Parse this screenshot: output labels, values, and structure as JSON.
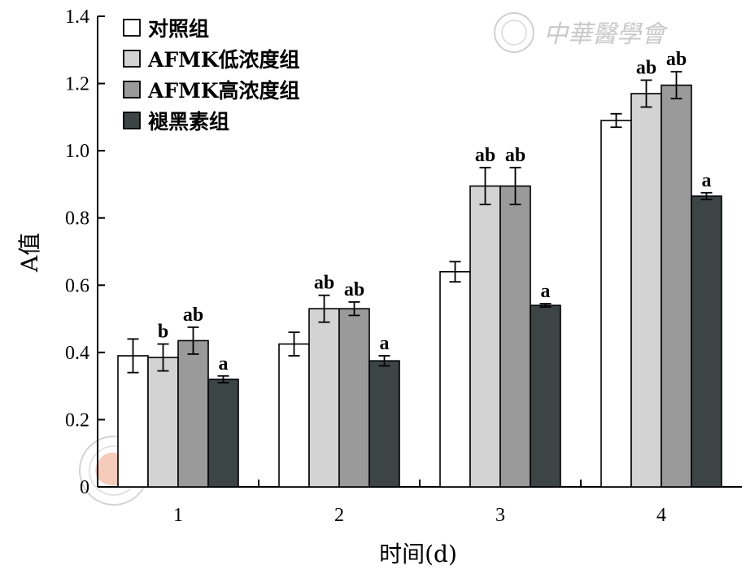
{
  "watermark": {
    "brand": "中華醫學會"
  },
  "chart_data": {
    "type": "bar",
    "xlabel": "时间(d)",
    "ylabel": "A值",
    "ylim": [
      0,
      1.4
    ],
    "yticks": [
      "0",
      "0.2",
      "0.4",
      "0.6",
      "0.8",
      "1.0",
      "1.2",
      "1.4"
    ],
    "categories": [
      "1",
      "2",
      "3",
      "4"
    ],
    "legend_position": "top-left",
    "grid": false,
    "series": [
      {
        "name": "对照组",
        "color": "#ffffff",
        "values": [
          0.39,
          0.425,
          0.64,
          1.09
        ],
        "errors": [
          0.05,
          0.035,
          0.03,
          0.02
        ],
        "labels": [
          "",
          "",
          "",
          ""
        ]
      },
      {
        "name": "AFMK低浓度组",
        "color": "#d3d3d3",
        "values": [
          0.385,
          0.53,
          0.895,
          1.17
        ],
        "errors": [
          0.04,
          0.04,
          0.055,
          0.04
        ],
        "labels": [
          "b",
          "ab",
          "ab",
          "ab"
        ]
      },
      {
        "name": "AFMK高浓度组",
        "color": "#9a9a9a",
        "values": [
          0.435,
          0.53,
          0.895,
          1.195
        ],
        "errors": [
          0.04,
          0.02,
          0.055,
          0.04
        ],
        "labels": [
          "ab",
          "ab",
          "ab",
          "ab"
        ]
      },
      {
        "name": "褪黑素组",
        "color": "#3d4446",
        "values": [
          0.32,
          0.375,
          0.54,
          0.865
        ],
        "errors": [
          0.01,
          0.015,
          0.005,
          0.01
        ],
        "labels": [
          "a",
          "a",
          "a",
          "a"
        ]
      }
    ]
  }
}
